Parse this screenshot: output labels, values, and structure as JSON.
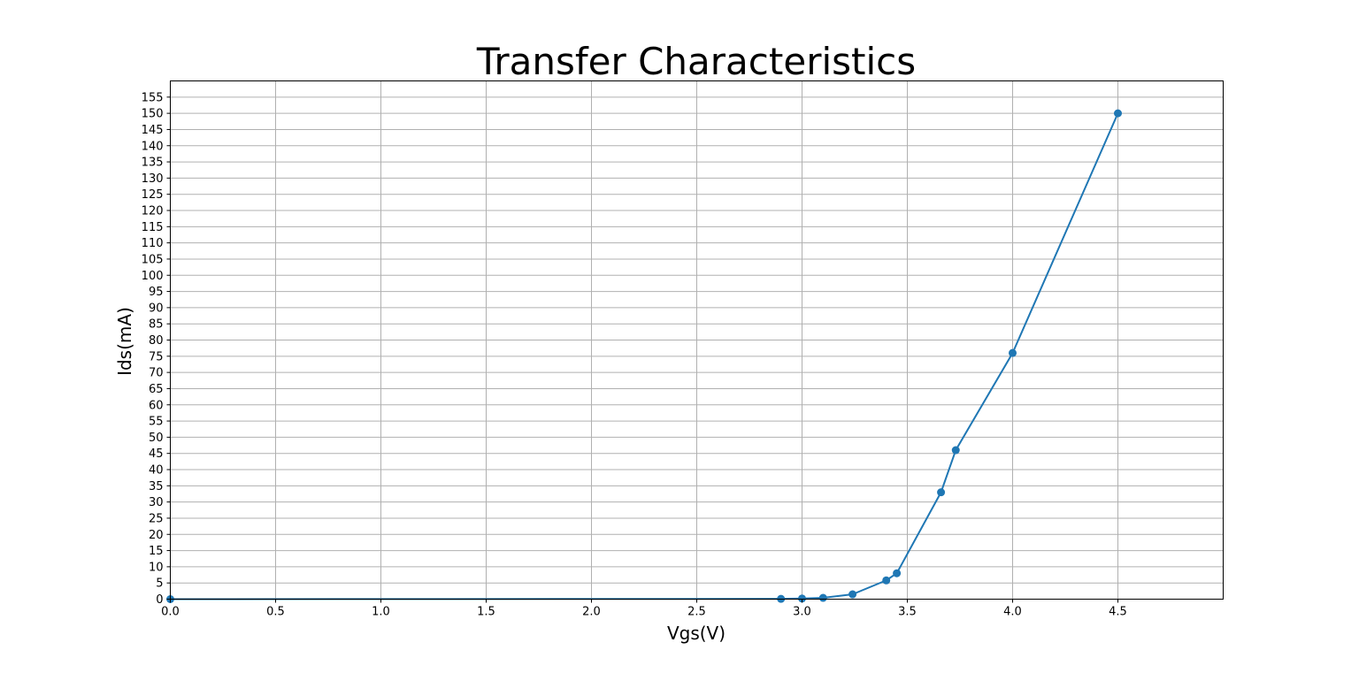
{
  "chart_data": {
    "type": "line",
    "title": "Transfer Characteristics",
    "xlabel": "Vgs(V)",
    "ylabel": "Ids(mA)",
    "xlim": [
      0,
      5
    ],
    "ylim": [
      0,
      160
    ],
    "xticks": [
      0,
      0.5,
      1,
      1.5,
      2,
      2.5,
      3,
      3.5,
      4,
      4.5
    ],
    "xtick_labels": [
      "0.0",
      "0.5",
      "1.0",
      "1.5",
      "2.0",
      "2.5",
      "3.0",
      "3.5",
      "4.0",
      "4.5"
    ],
    "yticks": [
      0,
      5,
      10,
      15,
      20,
      25,
      30,
      35,
      40,
      45,
      50,
      55,
      60,
      65,
      70,
      75,
      80,
      85,
      90,
      95,
      100,
      105,
      110,
      115,
      120,
      125,
      130,
      135,
      140,
      145,
      150,
      155
    ],
    "grid": true,
    "series": [
      {
        "color": "#1f77b4",
        "marker": "circle",
        "x": [
          0,
          2.9,
          3.0,
          3.1,
          3.24,
          3.4,
          3.45,
          3.66,
          3.73,
          4.0,
          4.5
        ],
        "y": [
          0,
          0.1,
          0.2,
          0.4,
          1.5,
          5.8,
          8,
          33,
          46,
          76,
          150
        ]
      }
    ]
  }
}
